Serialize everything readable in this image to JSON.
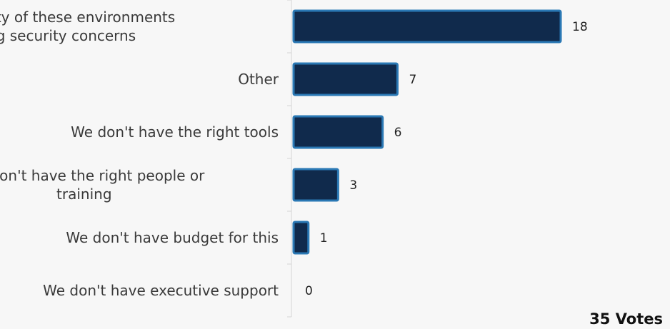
{
  "chart_data": {
    "type": "bar",
    "orientation": "horizontal",
    "categories": [
      "Complexity of these environments bring security concerns",
      "Other",
      "We don't have the right tools",
      "We don't have the right people or training",
      "We don't have budget for this",
      "We don't have executive support"
    ],
    "category_lines": [
      [
        "Complexity of these environments",
        "bring security concerns"
      ],
      [
        "Other"
      ],
      [
        "We don't have the right tools"
      ],
      [
        "We don't have the right people or",
        "training"
      ],
      [
        "We don't have budget for this"
      ],
      [
        "We don't have executive support"
      ]
    ],
    "values": [
      18,
      7,
      6,
      3,
      1,
      0
    ],
    "value_labels": [
      "18",
      "7",
      "6",
      "3",
      "1",
      "0"
    ],
    "xlim": [
      0,
      18
    ],
    "grid": false,
    "bar_color": "#102a4c",
    "bar_border_color": "#2a78b4"
  },
  "footer": {
    "votes_label": "35 Votes"
  }
}
